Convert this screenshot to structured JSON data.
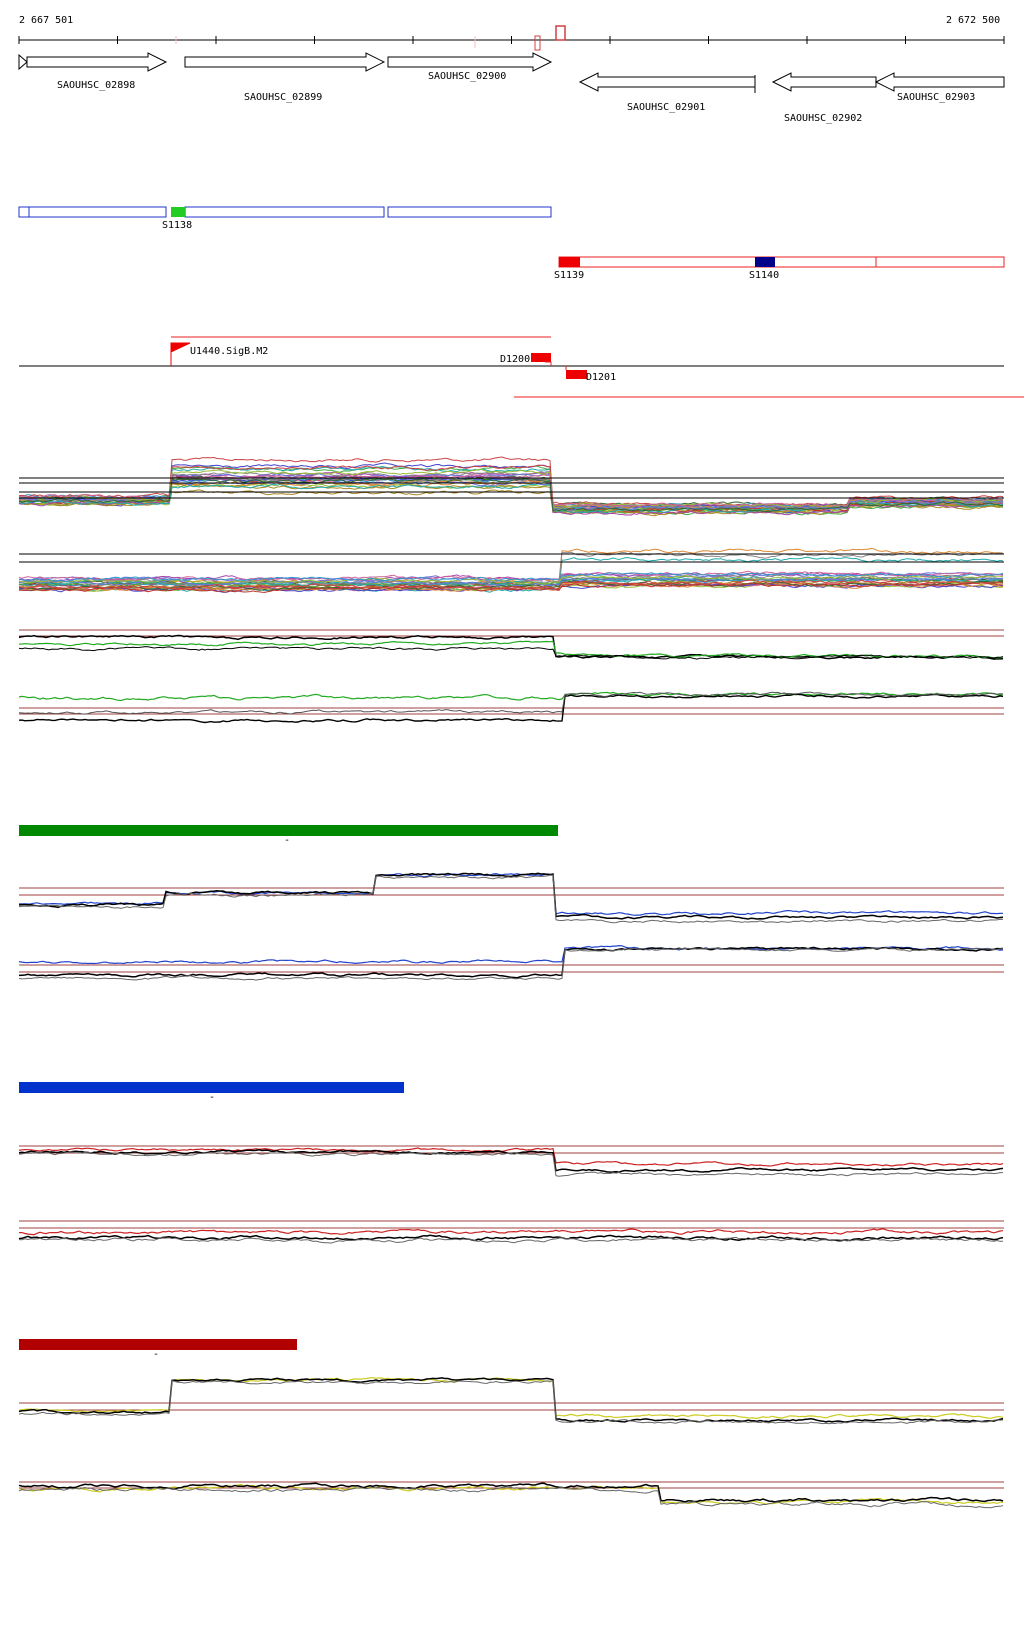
{
  "coordinates": {
    "start": "2 667 501",
    "end": "2 672 500"
  },
  "colors": {
    "forward_segment": "#2233cc",
    "reverse_segment": "#ee2222",
    "green_bar": "#008800",
    "blue_bar": "#0033cc",
    "red_bar": "#b00000",
    "threshold": "#a04040"
  },
  "genes": [
    {
      "label": "SAOUHSC_02898",
      "strand": "+"
    },
    {
      "label": "SAOUHSC_02899",
      "strand": "+"
    },
    {
      "label": "SAOUHSC_02900",
      "strand": "+"
    },
    {
      "label": "SAOUHSC_02901",
      "strand": "-"
    },
    {
      "label": "SAOUHSC_02902",
      "strand": "-"
    },
    {
      "label": "SAOUHSC_02903",
      "strand": "-"
    }
  ],
  "segments": [
    {
      "label": "S1138"
    },
    {
      "label": "S1139"
    },
    {
      "label": "S1140"
    }
  ],
  "features": [
    {
      "label": "U1440.SigB.M2"
    },
    {
      "label": "D1200"
    },
    {
      "label": "D1201"
    }
  ],
  "condition_bars": [
    {
      "name": "green",
      "marker": "-"
    },
    {
      "name": "blue",
      "marker": "-"
    },
    {
      "name": "red",
      "marker": "-"
    }
  ]
}
